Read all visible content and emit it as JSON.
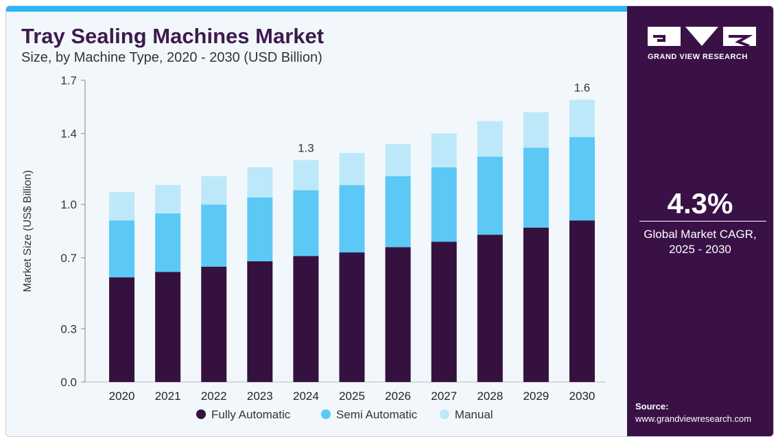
{
  "header": {
    "title": "Tray Sealing Machines Market",
    "subtitle": "Size, by Machine Type, 2020 - 2030 (USD Billion)"
  },
  "chart_data": {
    "type": "bar",
    "stacked": true,
    "categories": [
      "2020",
      "2021",
      "2022",
      "2023",
      "2024",
      "2025",
      "2026",
      "2027",
      "2028",
      "2029",
      "2030"
    ],
    "series": [
      {
        "name": "Fully Automatic",
        "color": "#35113f",
        "values": [
          0.59,
          0.62,
          0.65,
          0.68,
          0.71,
          0.73,
          0.76,
          0.79,
          0.83,
          0.87,
          0.91
        ]
      },
      {
        "name": "Semi Automatic",
        "color": "#5bc8f5",
        "values": [
          0.32,
          0.33,
          0.35,
          0.36,
          0.37,
          0.38,
          0.4,
          0.42,
          0.44,
          0.45,
          0.47
        ]
      },
      {
        "name": "Manual",
        "color": "#bde8f9",
        "values": [
          0.16,
          0.16,
          0.16,
          0.17,
          0.17,
          0.18,
          0.18,
          0.19,
          0.2,
          0.2,
          0.21
        ]
      }
    ],
    "ylabel": "Market Size (US$ Billion)",
    "ylim": [
      0,
      1.7
    ],
    "yticks": [
      "0.0",
      "0.3",
      "0.7",
      "1.0",
      "1.4",
      "1.7"
    ],
    "annotations": [
      {
        "category": "2024",
        "text": "1.3"
      },
      {
        "category": "2030",
        "text": "1.6"
      }
    ],
    "legend_position": "bottom",
    "grid": false
  },
  "sidebar": {
    "brand": "GRAND VIEW RESEARCH",
    "cagr_value": "4.3%",
    "cagr_label_line1": "Global Market CAGR,",
    "cagr_label_line2": "2025 - 2030",
    "source_label": "Source:",
    "source_url": "www.grandviewresearch.com"
  }
}
